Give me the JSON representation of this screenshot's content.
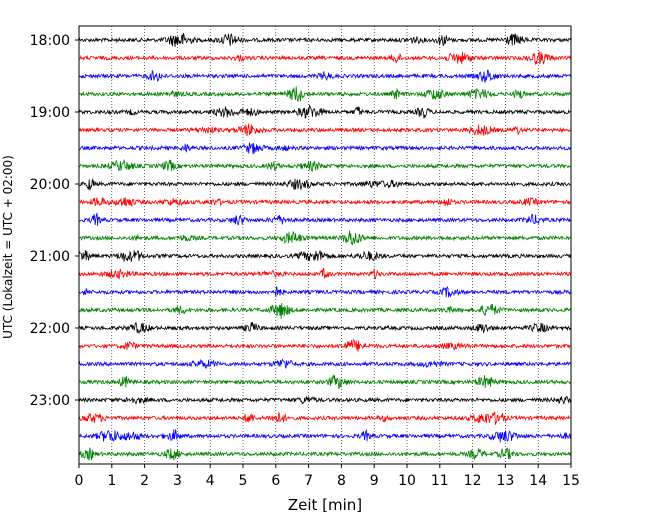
{
  "chart_data": {
    "type": "line",
    "chart_kind": "helicorder",
    "title": "",
    "xlabel": "Zeit  [min]",
    "ylabel": "UTC (Lokalzeit = UTC + 02:00)",
    "xlim": [
      0,
      15
    ],
    "x_ticks": [
      "0",
      "1",
      "2",
      "3",
      "4",
      "5",
      "6",
      "7",
      "8",
      "9",
      "10",
      "11",
      "12",
      "13",
      "14",
      "15"
    ],
    "y_ticks": [
      "18:00",
      "19:00",
      "20:00",
      "21:00",
      "22:00",
      "23:00"
    ],
    "grid": "vertical dotted lines at each minute",
    "legend": "none",
    "trace_colors": [
      "#000000",
      "#ff0000",
      "#0000ff",
      "#008000"
    ],
    "rows_per_hour": 4,
    "row_start_times": [
      "18:00",
      "18:15",
      "18:30",
      "18:45",
      "19:00",
      "19:15",
      "19:30",
      "19:45",
      "20:00",
      "20:15",
      "20:30",
      "20:45",
      "21:00",
      "21:15",
      "21:30",
      "21:45",
      "22:00",
      "22:15",
      "22:30",
      "22:45",
      "23:00",
      "23:15",
      "23:30",
      "23:45"
    ]
  }
}
